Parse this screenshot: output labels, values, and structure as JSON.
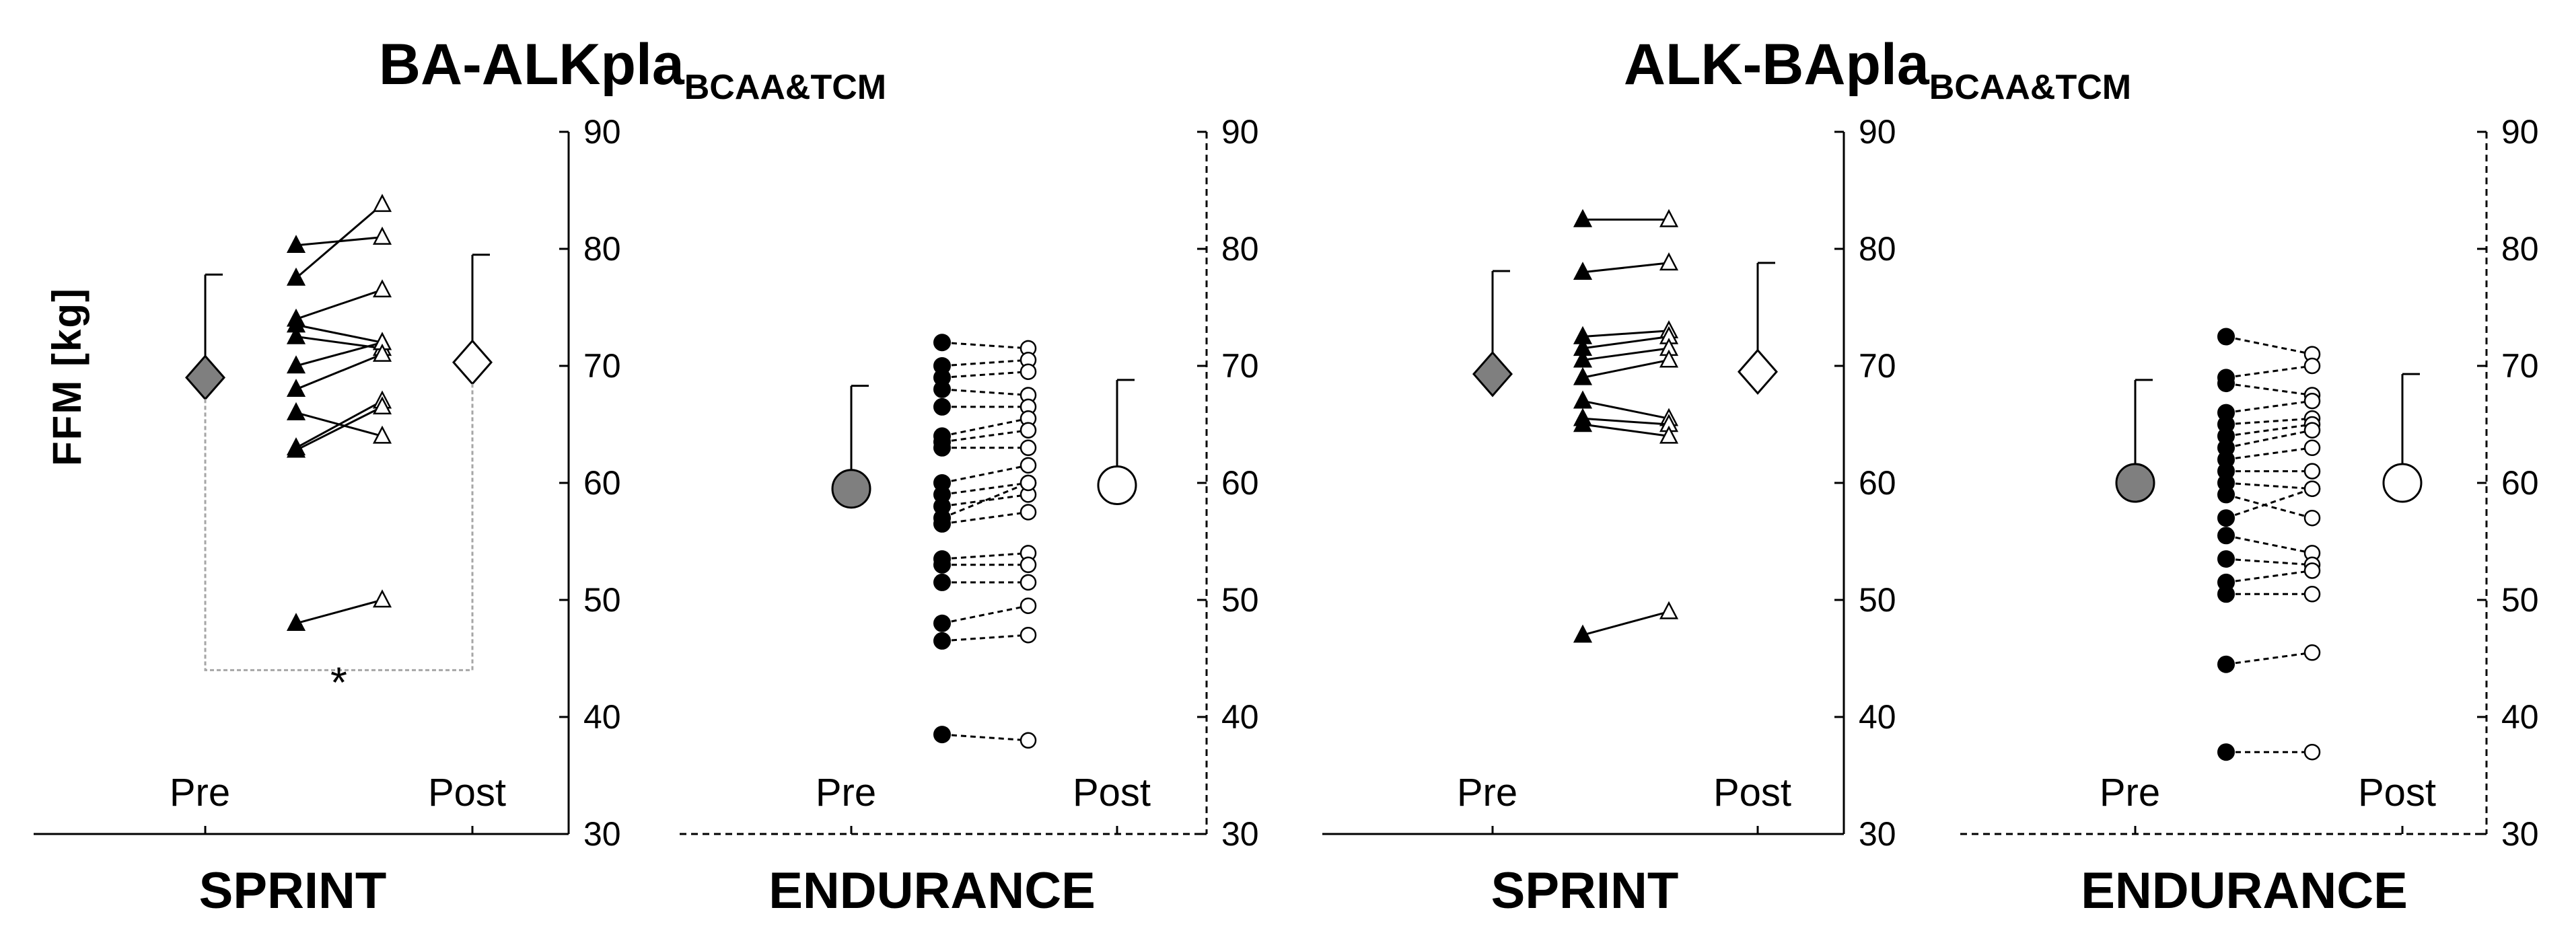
{
  "chart_data": {
    "type": "scatter",
    "ylabel": "FFM [kg]",
    "ylim": [
      30,
      90
    ],
    "yticks": [
      30,
      40,
      50,
      60,
      70,
      80,
      90
    ],
    "x_labels": [
      "Pre",
      "Post"
    ],
    "groups": [
      {
        "title": "BA-ALKpla",
        "title_sub": "BCAA&TCM",
        "panels": [
          {
            "label": "SPRINT",
            "style": "solid",
            "marker": "triangle",
            "mean_pre": 69.0,
            "sd_pre": 8.8,
            "mean_post": 70.3,
            "sd_post": 9.2,
            "significance": "*",
            "individuals": [
              {
                "pre": 80.3,
                "post": 81.0
              },
              {
                "pre": 77.5,
                "post": 83.8
              },
              {
                "pre": 74.0,
                "post": 76.5
              },
              {
                "pre": 73.5,
                "post": 72.0
              },
              {
                "pre": 72.5,
                "post": 71.5
              },
              {
                "pre": 70.0,
                "post": 72.0
              },
              {
                "pre": 68.0,
                "post": 71.0
              },
              {
                "pre": 66.0,
                "post": 64.0
              },
              {
                "pre": 63.0,
                "post": 67.0
              },
              {
                "pre": 62.8,
                "post": 66.5
              },
              {
                "pre": 48.0,
                "post": 50.0
              }
            ]
          },
          {
            "label": "ENDURANCE",
            "style": "dashed",
            "marker": "circle",
            "mean_pre": 59.5,
            "sd_pre": 8.8,
            "mean_post": 59.8,
            "sd_post": 9.0,
            "individuals": [
              {
                "pre": 72.0,
                "post": 71.5
              },
              {
                "pre": 70.0,
                "post": 70.5
              },
              {
                "pre": 69.0,
                "post": 69.5
              },
              {
                "pre": 68.0,
                "post": 67.5
              },
              {
                "pre": 66.5,
                "post": 66.5
              },
              {
                "pre": 64.0,
                "post": 65.5
              },
              {
                "pre": 63.5,
                "post": 64.5
              },
              {
                "pre": 63.0,
                "post": 63.0
              },
              {
                "pre": 60.0,
                "post": 61.5
              },
              {
                "pre": 59.0,
                "post": 60.0
              },
              {
                "pre": 58.0,
                "post": 59.0
              },
              {
                "pre": 57.0,
                "post": 60.0
              },
              {
                "pre": 56.5,
                "post": 57.5
              },
              {
                "pre": 53.5,
                "post": 54.0
              },
              {
                "pre": 53.0,
                "post": 53.0
              },
              {
                "pre": 51.5,
                "post": 51.5
              },
              {
                "pre": 48.0,
                "post": 49.5
              },
              {
                "pre": 46.5,
                "post": 47.0
              },
              {
                "pre": 38.5,
                "post": 38.0
              }
            ]
          }
        ]
      },
      {
        "title": "ALK-BApla",
        "title_sub": "BCAA&TCM",
        "panels": [
          {
            "label": "SPRINT",
            "style": "solid",
            "marker": "triangle",
            "mean_pre": 69.3,
            "sd_pre": 8.8,
            "mean_post": 69.5,
            "sd_post": 9.3,
            "individuals": [
              {
                "pre": 82.5,
                "post": 82.5
              },
              {
                "pre": 78.0,
                "post": 78.8
              },
              {
                "pre": 72.5,
                "post": 73.0
              },
              {
                "pre": 71.5,
                "post": 72.5
              },
              {
                "pre": 70.5,
                "post": 71.5
              },
              {
                "pre": 69.0,
                "post": 70.5
              },
              {
                "pre": 67.0,
                "post": 65.5
              },
              {
                "pre": 65.5,
                "post": 65.0
              },
              {
                "pre": 65.0,
                "post": 64.0
              },
              {
                "pre": 47.0,
                "post": 49.0
              }
            ]
          },
          {
            "label": "ENDURANCE",
            "style": "dashed",
            "marker": "circle",
            "mean_pre": 60.0,
            "sd_pre": 8.8,
            "mean_post": 60.0,
            "sd_post": 9.3,
            "individuals": [
              {
                "pre": 72.5,
                "post": 71.0
              },
              {
                "pre": 69.0,
                "post": 70.0
              },
              {
                "pre": 68.5,
                "post": 67.5
              },
              {
                "pre": 66.0,
                "post": 67.0
              },
              {
                "pre": 65.0,
                "post": 65.5
              },
              {
                "pre": 64.0,
                "post": 65.0
              },
              {
                "pre": 63.0,
                "post": 64.5
              },
              {
                "pre": 62.0,
                "post": 63.0
              },
              {
                "pre": 61.0,
                "post": 61.0
              },
              {
                "pre": 60.0,
                "post": 59.5
              },
              {
                "pre": 59.0,
                "post": 57.0
              },
              {
                "pre": 57.0,
                "post": 59.5
              },
              {
                "pre": 55.5,
                "post": 54.0
              },
              {
                "pre": 53.5,
                "post": 53.0
              },
              {
                "pre": 51.5,
                "post": 52.5
              },
              {
                "pre": 50.5,
                "post": 50.5
              },
              {
                "pre": 44.5,
                "post": 45.5
              },
              {
                "pre": 37.0,
                "post": 37.0
              }
            ]
          }
        ]
      }
    ]
  }
}
